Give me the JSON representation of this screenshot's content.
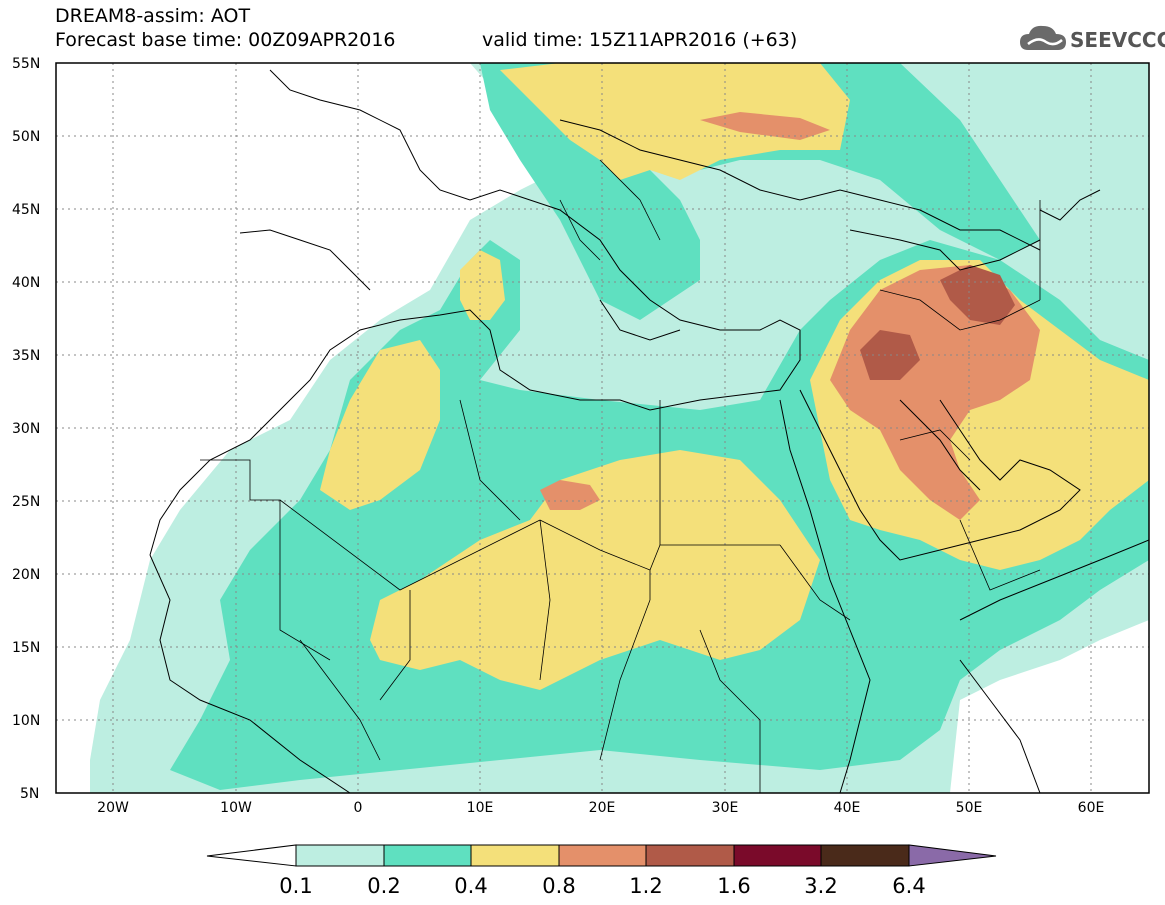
{
  "header": {
    "title": "DREAM8-assim: AOT",
    "base_time": "Forecast base time: 00Z09APR2016",
    "valid_time": "valid time: 15Z11APR2016 (+63)",
    "logo_text": "SEEVCCC"
  },
  "map": {
    "lat_labels": [
      "55N",
      "50N",
      "45N",
      "40N",
      "35N",
      "30N",
      "25N",
      "20N",
      "15N",
      "10N",
      "5N"
    ],
    "lon_labels": [
      "20W",
      "10W",
      "0",
      "10E",
      "20E",
      "30E",
      "40E",
      "50E",
      "60E"
    ]
  },
  "colorbar": {
    "labels": [
      "0.1",
      "0.2",
      "0.4",
      "0.8",
      "1.2",
      "1.6",
      "3.2",
      "6.4"
    ],
    "colors": [
      "#ffffff",
      "#bdeee1",
      "#5fe0c0",
      "#f4e07a",
      "#e4906a",
      "#b05a48",
      "#7a0a2a",
      "#4a2a1a",
      "#8a6aa8"
    ]
  },
  "colors": {
    "very_low": "#bdeee1",
    "low": "#5fe0c0",
    "moderate": "#f4e07a",
    "high": "#e4906a",
    "very_high": "#b05a48"
  }
}
